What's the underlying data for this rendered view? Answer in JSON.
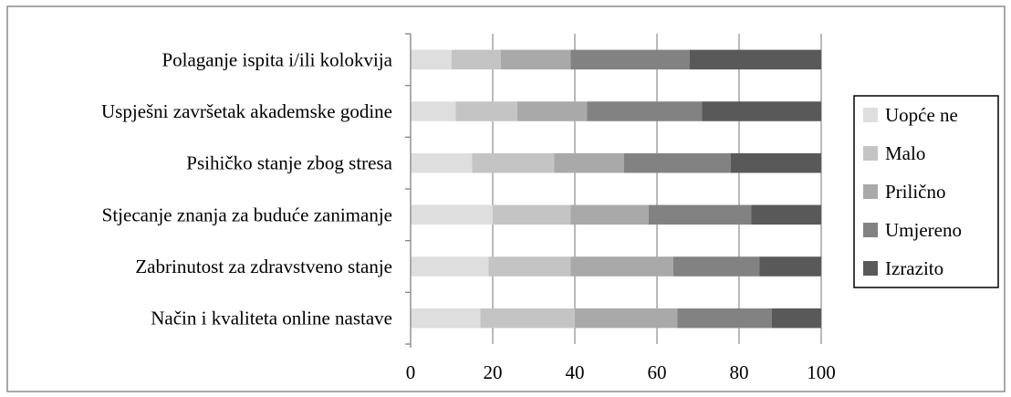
{
  "chart_data": {
    "type": "bar",
    "orientation": "horizontal",
    "stacked": true,
    "categories": [
      "Polaganje ispita i/ili kolokvija",
      "Uspješni završetak akademske godine",
      "Psihičko stanje zbog stresa",
      "Stjecanje znanja za buduće zanimanje",
      "Zabrinutost za zdravstveno stanje",
      "Način i kvaliteta online nastave"
    ],
    "series": [
      {
        "name": "Uopće ne",
        "color": "#dedede",
        "values": [
          10,
          11,
          15,
          20,
          19,
          17
        ]
      },
      {
        "name": "Malo",
        "color": "#c4c4c4",
        "values": [
          12,
          15,
          20,
          19,
          20,
          23
        ]
      },
      {
        "name": "Prilično",
        "color": "#a9a9a9",
        "values": [
          17,
          17,
          17,
          19,
          25,
          25
        ]
      },
      {
        "name": "Umjereno",
        "color": "#828282",
        "values": [
          29,
          28,
          26,
          25,
          21,
          23
        ]
      },
      {
        "name": "Izrazito",
        "color": "#595959",
        "values": [
          32,
          29,
          22,
          17,
          15,
          12
        ]
      }
    ],
    "xlim": [
      0,
      100
    ],
    "xticks": [
      0,
      20,
      40,
      60,
      80,
      100
    ],
    "title": "",
    "xlabel": "",
    "ylabel": "",
    "grid": "vertical",
    "legend_position": "right"
  }
}
